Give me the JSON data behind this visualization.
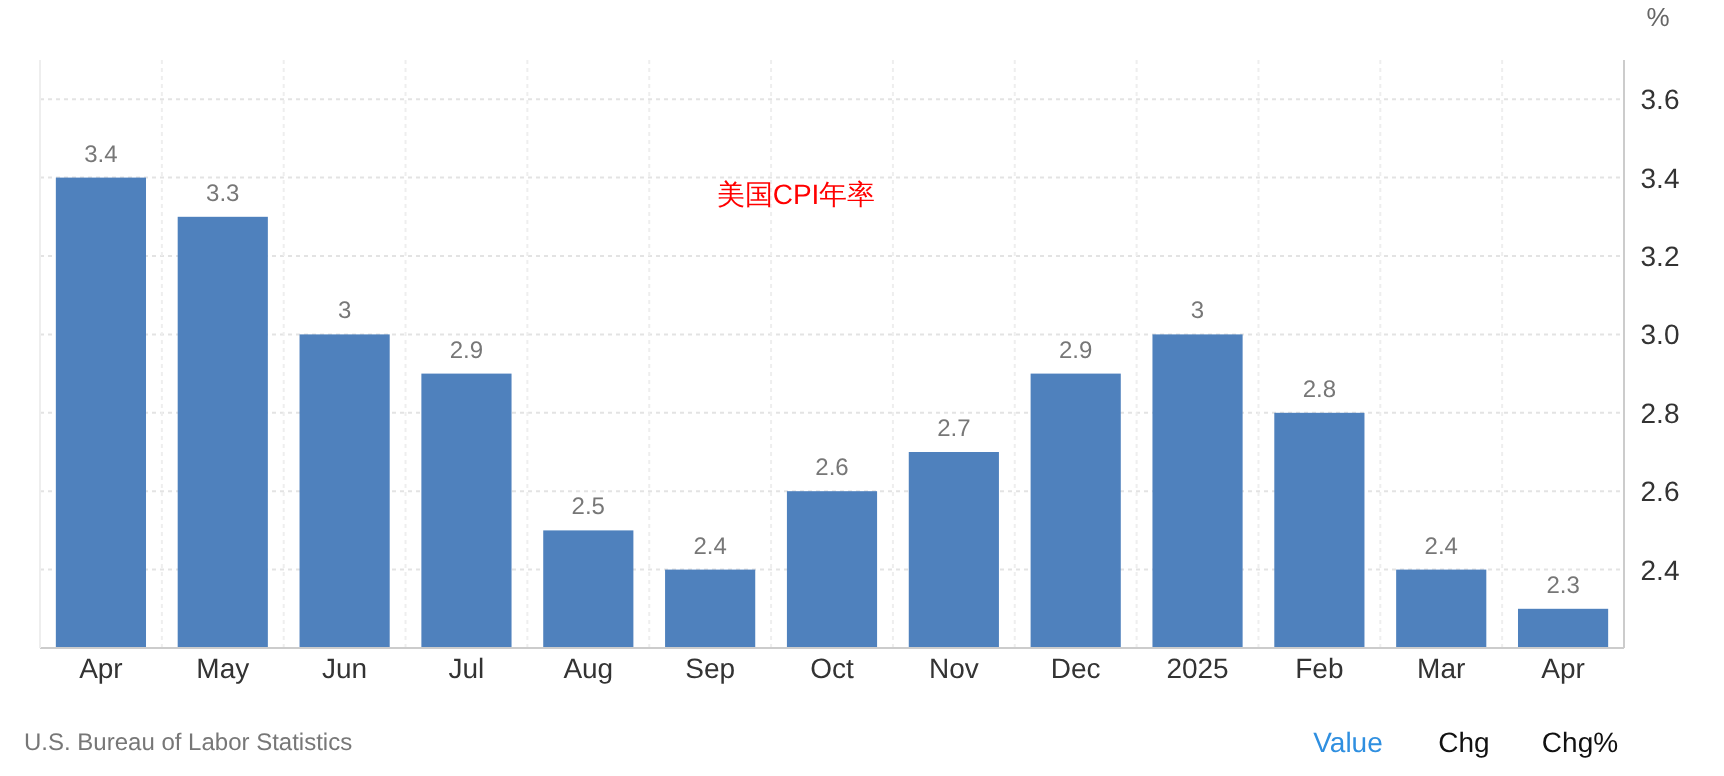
{
  "chart_data": {
    "type": "bar",
    "title": "美国CPI年率",
    "ylabel": "%",
    "categories": [
      "Apr",
      "May",
      "Jun",
      "Jul",
      "Aug",
      "Sep",
      "Oct",
      "Nov",
      "Dec",
      "2025",
      "Feb",
      "Mar",
      "Apr"
    ],
    "values": [
      3.4,
      3.3,
      3,
      2.9,
      2.5,
      2.4,
      2.6,
      2.7,
      2.9,
      3,
      2.8,
      2.4,
      2.3
    ],
    "color": "#4f81bd",
    "ylim": [
      2.2,
      3.7
    ],
    "yticks": [
      2.4,
      2.6,
      2.8,
      "3.0",
      3.2,
      3.4,
      3.6
    ],
    "grid": true,
    "data_labels": true,
    "annotations": [
      "U.S. Bureau of Labor Statistics",
      "Value",
      "Chg",
      "Chg%"
    ]
  }
}
